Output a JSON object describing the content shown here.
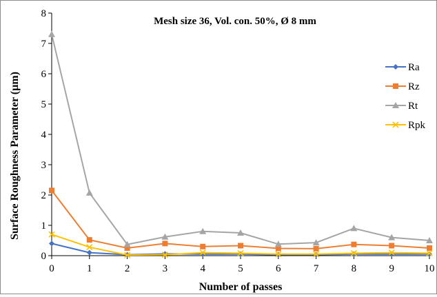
{
  "chart_data": {
    "type": "line",
    "title": "Mesh size 36, Vol. con. 50%, Ø 8  mm",
    "xlabel": "Number of passes",
    "ylabel": "Surface Roughness Parameter (µm)",
    "x": [
      0,
      1,
      2,
      3,
      4,
      5,
      6,
      7,
      8,
      9,
      10
    ],
    "xticks": [
      "0",
      "1",
      "2",
      "3",
      "4",
      "5",
      "6",
      "7",
      "8",
      "9",
      "10"
    ],
    "yticks": [
      "0",
      "1",
      "2",
      "3",
      "4",
      "5",
      "6",
      "7",
      "8"
    ],
    "xlim": [
      0,
      10
    ],
    "ylim": [
      0,
      8
    ],
    "grid": false,
    "legend": "right",
    "series": [
      {
        "name": "Ra",
        "color": "#4472C4",
        "marker": "diamond",
        "values": [
          0.4,
          0.1,
          0.03,
          0.06,
          0.05,
          0.05,
          0.03,
          0.03,
          0.05,
          0.05,
          0.05
        ]
      },
      {
        "name": "Rz",
        "color": "#ED7D31",
        "marker": "square",
        "values": [
          2.15,
          0.52,
          0.25,
          0.4,
          0.3,
          0.33,
          0.24,
          0.23,
          0.37,
          0.33,
          0.25
        ]
      },
      {
        "name": "Rt",
        "color": "#A5A5A5",
        "marker": "triangle",
        "values": [
          7.3,
          2.07,
          0.37,
          0.62,
          0.8,
          0.75,
          0.38,
          0.43,
          0.9,
          0.6,
          0.5
        ]
      },
      {
        "name": "Rpk",
        "color": "#FFC000",
        "marker": "x",
        "values": [
          0.7,
          0.28,
          0.02,
          0.03,
          0.1,
          0.08,
          0.05,
          0.05,
          0.08,
          0.1,
          0.08
        ]
      }
    ]
  }
}
